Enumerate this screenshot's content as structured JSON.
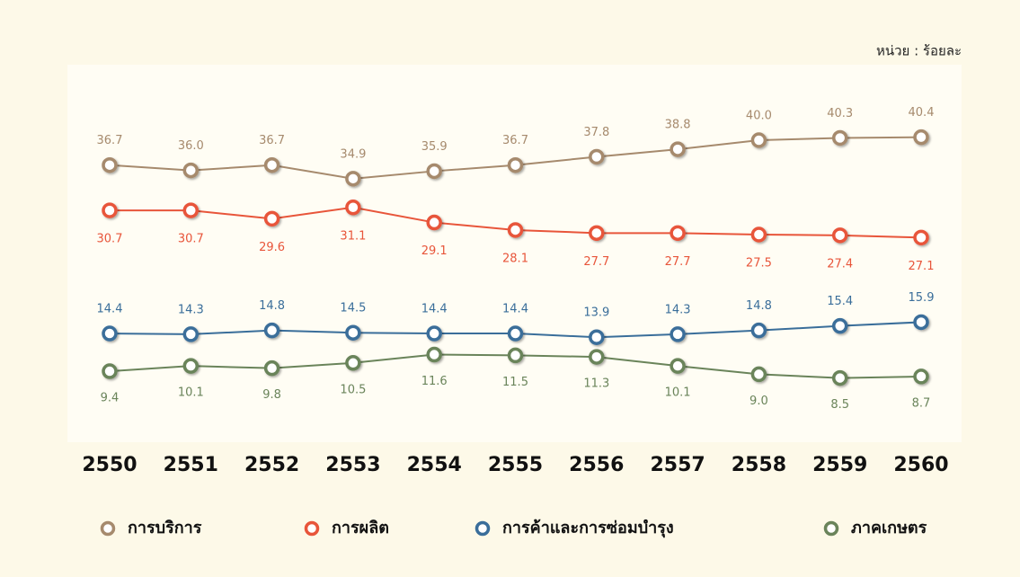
{
  "chart_data": {
    "type": "line",
    "unit_label": "หน่วย : ร้อยละ",
    "categories": [
      "2550",
      "2551",
      "2552",
      "2553",
      "2554",
      "2555",
      "2556",
      "2557",
      "2558",
      "2559",
      "2560"
    ],
    "ylim": [
      0,
      50
    ],
    "series": [
      {
        "name": "การบริการ",
        "color": "#a68a6d",
        "values": [
          36.7,
          36.0,
          36.7,
          34.9,
          35.9,
          36.7,
          37.8,
          38.8,
          40.0,
          40.3,
          40.4
        ],
        "value_labels": [
          "36.7",
          "36.0",
          "36.7",
          "34.9",
          "35.9",
          "36.7",
          "37.8",
          "38.8",
          "40.0",
          "40.3",
          "40.4"
        ]
      },
      {
        "name": "การผลิต",
        "color": "#e8553a",
        "values": [
          30.7,
          30.7,
          29.6,
          31.1,
          29.1,
          28.1,
          27.7,
          27.7,
          27.5,
          27.4,
          27.1
        ]
      },
      {
        "name": "การค้าและการซ่อมบำรุง",
        "color": "#3a6e9a",
        "values": [
          14.4,
          14.3,
          14.8,
          14.5,
          14.4,
          14.4,
          13.9,
          14.3,
          14.8,
          15.4,
          15.9
        ]
      },
      {
        "name": "ภาคเกษตร",
        "color": "#6a845a",
        "values": [
          9.4,
          10.1,
          9.8,
          10.5,
          11.6,
          11.5,
          11.3,
          10.1,
          9.0,
          8.5,
          8.7
        ],
        "value_labels": [
          "9.4",
          "10.1",
          "9.8",
          "10.5",
          "11.6",
          "11.5",
          "11.3",
          "10.1",
          "9.0",
          "8.5",
          "8.7"
        ]
      }
    ],
    "legend": "bottom"
  }
}
